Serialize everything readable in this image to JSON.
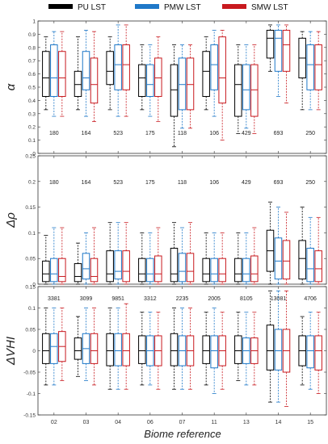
{
  "legend": [
    {
      "label": "PU LST",
      "color": "#000000"
    },
    {
      "label": "PMW LST",
      "color": "#1f78c8"
    },
    {
      "label": "SMW LST",
      "color": "#c8191e"
    }
  ],
  "xlabel": "Biome reference",
  "chart_data": [
    {
      "type": "boxplot",
      "ylabel": "α",
      "ylim": [
        0,
        1
      ],
      "yticks": [
        0,
        0.1,
        0.2,
        0.3,
        0.4,
        0.5,
        0.6,
        0.7,
        0.8,
        0.9,
        1
      ],
      "categories": [
        "02",
        "03",
        "04",
        "06",
        "07",
        "11",
        "13",
        "14",
        "15"
      ],
      "counts": [
        "180",
        "164",
        "523",
        "175",
        "118",
        "106",
        "429",
        "693",
        "250"
      ],
      "series": [
        {
          "name": "PU LST",
          "boxes": [
            [
              0.33,
              0.43,
              0.57,
              0.77,
              0.88
            ],
            [
              0.33,
              0.43,
              0.52,
              0.62,
              0.88
            ],
            [
              0.33,
              0.52,
              0.62,
              0.77,
              0.88
            ],
            [
              0.33,
              0.43,
              0.57,
              0.67,
              0.82
            ],
            [
              0.05,
              0.28,
              0.48,
              0.67,
              0.82
            ],
            [
              0.33,
              0.43,
              0.62,
              0.77,
              0.88
            ],
            [
              0.15,
              0.28,
              0.52,
              0.67,
              0.82
            ],
            [
              0.62,
              0.72,
              0.87,
              0.93,
              0.97
            ],
            [
              0.33,
              0.57,
              0.72,
              0.87,
              0.92
            ]
          ]
        },
        {
          "name": "PMW LST",
          "boxes": [
            [
              0.28,
              0.43,
              0.57,
              0.82,
              0.92
            ],
            [
              0.28,
              0.48,
              0.57,
              0.77,
              0.93
            ],
            [
              0.28,
              0.48,
              0.67,
              0.82,
              0.97
            ],
            [
              0.28,
              0.43,
              0.52,
              0.67,
              0.82
            ],
            [
              0.19,
              0.33,
              0.52,
              0.72,
              0.82
            ],
            [
              0.28,
              0.48,
              0.67,
              0.82,
              0.93
            ],
            [
              0.19,
              0.33,
              0.48,
              0.67,
              0.82
            ],
            [
              0.43,
              0.62,
              0.87,
              0.93,
              0.97
            ],
            [
              0.33,
              0.48,
              0.67,
              0.82,
              0.92
            ]
          ]
        },
        {
          "name": "SMW LST",
          "boxes": [
            [
              0.28,
              0.43,
              0.57,
              0.77,
              0.92
            ],
            [
              0.24,
              0.38,
              0.52,
              0.72,
              0.92
            ],
            [
              0.28,
              0.48,
              0.67,
              0.82,
              0.97
            ],
            [
              0.24,
              0.43,
              0.57,
              0.72,
              0.88
            ],
            [
              0.19,
              0.33,
              0.52,
              0.72,
              0.82
            ],
            [
              0.1,
              0.38,
              0.57,
              0.88,
              0.93
            ],
            [
              0.15,
              0.28,
              0.48,
              0.67,
              0.82
            ],
            [
              0.38,
              0.62,
              0.82,
              0.93,
              0.97
            ],
            [
              0.33,
              0.48,
              0.67,
              0.82,
              0.92
            ]
          ]
        }
      ]
    },
    {
      "type": "boxplot",
      "ylabel": "Δρ",
      "ylim": [
        0,
        0.25
      ],
      "yticks": [
        0,
        0.05,
        0.1,
        0.15,
        0.2,
        0.25
      ],
      "categories": [
        "02",
        "03",
        "04",
        "06",
        "07",
        "11",
        "13",
        "14",
        "15"
      ],
      "counts": [
        "180",
        "164",
        "523",
        "175",
        "118",
        "106",
        "429",
        "693",
        "250"
      ],
      "series": [
        {
          "name": "PU LST",
          "boxes": [
            [
              0.0,
              0.005,
              0.02,
              0.045,
              0.095
            ],
            [
              0.0,
              0.005,
              0.015,
              0.04,
              0.08
            ],
            [
              0.0,
              0.005,
              0.02,
              0.065,
              0.12
            ],
            [
              0.0,
              0.005,
              0.02,
              0.05,
              0.1
            ],
            [
              0.0,
              0.005,
              0.02,
              0.07,
              0.12
            ],
            [
              0.0,
              0.005,
              0.02,
              0.05,
              0.1
            ],
            [
              0.0,
              0.005,
              0.02,
              0.05,
              0.1
            ],
            [
              0.0,
              0.025,
              0.065,
              0.105,
              0.16
            ],
            [
              0.0,
              0.01,
              0.05,
              0.085,
              0.15
            ]
          ]
        },
        {
          "name": "PMW LST",
          "boxes": [
            [
              0.0,
              0.005,
              0.02,
              0.05,
              0.11
            ],
            [
              0.0,
              0.01,
              0.03,
              0.06,
              0.1
            ],
            [
              0.0,
              0.01,
              0.025,
              0.065,
              0.12
            ],
            [
              0.0,
              0.005,
              0.02,
              0.05,
              0.1
            ],
            [
              0.0,
              0.005,
              0.025,
              0.06,
              0.11
            ],
            [
              0.0,
              0.005,
              0.02,
              0.05,
              0.1
            ],
            [
              0.0,
              0.005,
              0.02,
              0.05,
              0.1
            ],
            [
              0.0,
              0.01,
              0.045,
              0.09,
              0.15
            ],
            [
              0.0,
              0.005,
              0.03,
              0.07,
              0.13
            ]
          ]
        },
        {
          "name": "SMW LST",
          "boxes": [
            [
              0.0,
              0.005,
              0.015,
              0.05,
              0.11
            ],
            [
              0.0,
              0.005,
              0.015,
              0.05,
              0.11
            ],
            [
              0.0,
              0.005,
              0.025,
              0.065,
              0.12
            ],
            [
              0.0,
              0.005,
              0.02,
              0.055,
              0.11
            ],
            [
              0.0,
              0.005,
              0.025,
              0.06,
              0.12
            ],
            [
              0.0,
              0.005,
              0.02,
              0.05,
              0.1
            ],
            [
              0.0,
              0.005,
              0.02,
              0.055,
              0.11
            ],
            [
              0.0,
              0.01,
              0.045,
              0.085,
              0.14
            ],
            [
              0.0,
              0.005,
              0.03,
              0.065,
              0.13
            ]
          ]
        }
      ]
    },
    {
      "type": "boxplot",
      "ylabel": "ΔVHI",
      "ylim": [
        -0.15,
        0.15
      ],
      "yticks": [
        -0.15,
        -0.1,
        -0.05,
        0,
        0.05,
        0.1,
        0.15
      ],
      "categories": [
        "02",
        "03",
        "04",
        "06",
        "07",
        "11",
        "13",
        "14",
        "15"
      ],
      "counts": [
        "3381",
        "3099",
        "9851",
        "3312",
        "2235",
        "2005",
        "8105",
        "13081",
        "4706"
      ],
      "series": [
        {
          "name": "PU LST",
          "boxes": [
            [
              -0.08,
              -0.03,
              0.0,
              0.04,
              0.1
            ],
            [
              -0.06,
              -0.02,
              0.0,
              0.03,
              0.08
            ],
            [
              -0.09,
              -0.035,
              0.0,
              0.04,
              0.1
            ],
            [
              -0.08,
              -0.03,
              0.0,
              0.035,
              0.09
            ],
            [
              -0.09,
              -0.035,
              0.0,
              0.04,
              0.1
            ],
            [
              -0.08,
              -0.03,
              0.0,
              0.035,
              0.09
            ],
            [
              -0.07,
              -0.03,
              0.0,
              0.035,
              0.09
            ],
            [
              -0.12,
              -0.045,
              0.0,
              0.06,
              0.14
            ],
            [
              -0.08,
              -0.035,
              0.0,
              0.035,
              0.08
            ]
          ]
        },
        {
          "name": "PMW LST",
          "boxes": [
            [
              -0.08,
              -0.03,
              0.01,
              0.04,
              0.1
            ],
            [
              -0.07,
              -0.03,
              0.005,
              0.04,
              0.1
            ],
            [
              -0.09,
              -0.035,
              0.0,
              0.04,
              0.1
            ],
            [
              -0.08,
              -0.035,
              0.0,
              0.035,
              0.09
            ],
            [
              -0.09,
              -0.035,
              0.0,
              0.035,
              0.1
            ],
            [
              -0.1,
              -0.04,
              0.0,
              0.035,
              0.1
            ],
            [
              -0.08,
              -0.03,
              0.0,
              0.03,
              0.09
            ],
            [
              -0.12,
              -0.045,
              0.0,
              0.05,
              0.14
            ],
            [
              -0.09,
              -0.04,
              0.0,
              0.035,
              0.09
            ]
          ]
        },
        {
          "name": "SMW LST",
          "boxes": [
            [
              -0.07,
              -0.025,
              0.01,
              0.045,
              0.1
            ],
            [
              -0.08,
              -0.03,
              0.0,
              0.04,
              0.1
            ],
            [
              -0.09,
              -0.035,
              0.0,
              0.04,
              0.11
            ],
            [
              -0.09,
              -0.035,
              0.0,
              0.035,
              0.09
            ],
            [
              -0.09,
              -0.035,
              0.0,
              0.035,
              0.1
            ],
            [
              -0.09,
              -0.035,
              0.0,
              0.035,
              0.09
            ],
            [
              -0.08,
              -0.03,
              0.0,
              0.03,
              0.09
            ],
            [
              -0.13,
              -0.05,
              0.0,
              0.05,
              0.14
            ],
            [
              -0.1,
              -0.045,
              0.0,
              0.035,
              0.09
            ]
          ]
        }
      ]
    }
  ]
}
